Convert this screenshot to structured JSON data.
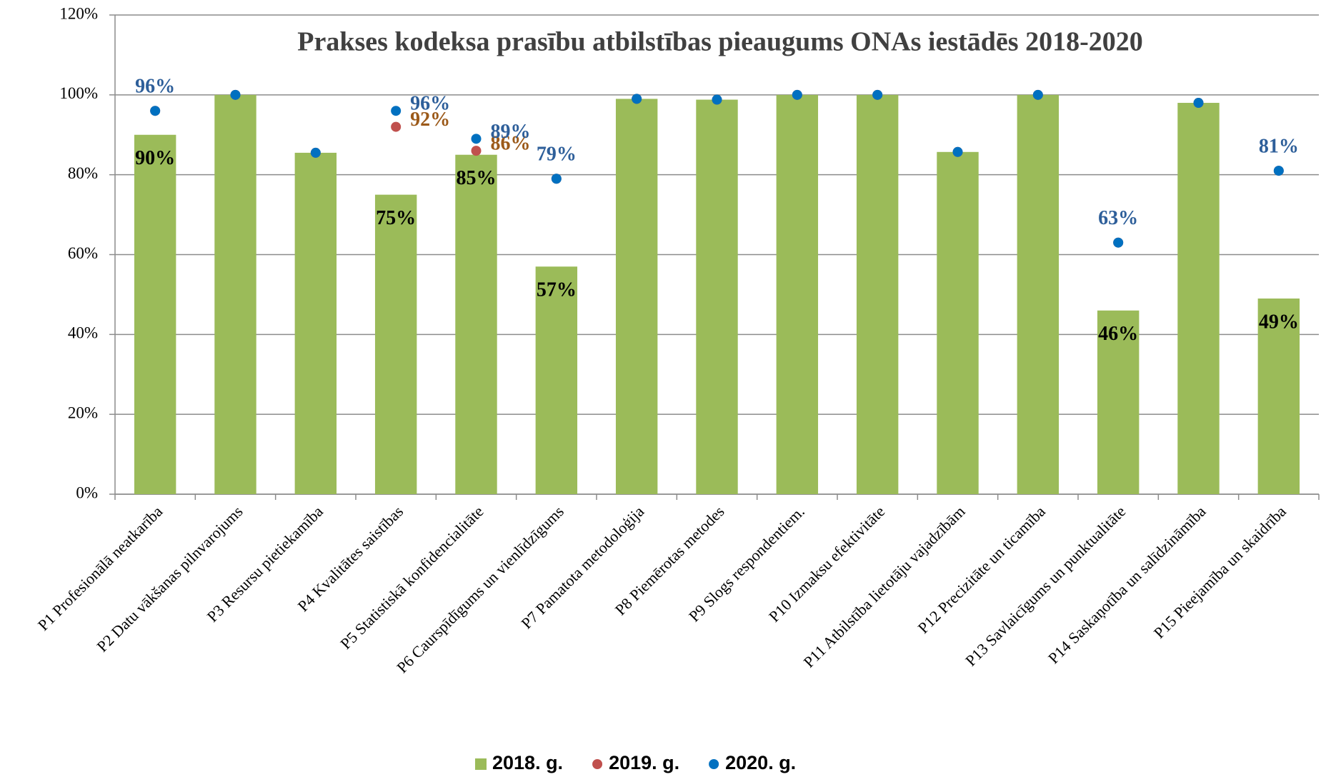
{
  "chart_data": {
    "type": "bar",
    "title": "Prakses kodeksa prasību atbilstības pieaugums ONAs iestādēs 2018-2020",
    "categories": [
      "P1 Profesionālā neatkarība",
      "P2 Datu vākšanas pilnvarojums",
      "P3 Resursu pietiekamība",
      "P4 Kvalitātes saistības",
      "P5 Statistiskā konfidencialitāte",
      "P6 Caurspīdīgums un vienlīdzīgums",
      "P7 Pamatota metodoloģija",
      "P8 Piemērotas metodes",
      "P9 Slogs respondentiem.",
      "P10 Izmaksu efektivitāte",
      "P11 Atbilstība lietotāju vajadzībām",
      "P12 Precizitāte un ticamība",
      "P13 Savlaicīgums un punktualitāte",
      "P14 Saskaņotība un salīdzināmība",
      "P15 Pieejamība un skaidrība"
    ],
    "series": [
      {
        "name": "2018. g.",
        "type": "bar",
        "color": "#9bbb59",
        "label_color": "#000000",
        "values": [
          90,
          100,
          85.5,
          75,
          85,
          57,
          99,
          98.8,
          100,
          100,
          85.7,
          100,
          46,
          98,
          49
        ],
        "value_labels": [
          "90%",
          null,
          null,
          "75%",
          "85%",
          "57%",
          null,
          null,
          null,
          null,
          null,
          null,
          "46%",
          null,
          "49%"
        ]
      },
      {
        "name": "2019. g.",
        "type": "scatter",
        "color": "#c0504d",
        "label_color": "#9c5a1a",
        "values": [
          96,
          100,
          85.5,
          92,
          86,
          79,
          99,
          98.8,
          100,
          100,
          85.7,
          100,
          63,
          98,
          81
        ],
        "value_labels": [
          null,
          null,
          null,
          "92%",
          "86%",
          null,
          null,
          null,
          null,
          null,
          null,
          null,
          null,
          null,
          null
        ]
      },
      {
        "name": "2020. g.",
        "type": "scatter",
        "color": "#0070c0",
        "label_color": "#2e5f9a",
        "values": [
          96,
          100,
          85.5,
          96,
          89,
          79,
          99,
          98.8,
          100,
          100,
          85.7,
          100,
          63,
          98,
          81
        ],
        "value_labels": [
          "96%",
          null,
          null,
          "96%",
          "89%",
          "79%",
          null,
          null,
          null,
          null,
          null,
          null,
          "63%",
          null,
          "81%"
        ]
      }
    ],
    "ylim": [
      0,
      120
    ],
    "yticks": [
      {
        "value": 0,
        "label": "0%"
      },
      {
        "value": 20,
        "label": "20%"
      },
      {
        "value": 40,
        "label": "40%"
      },
      {
        "value": 60,
        "label": "60%"
      },
      {
        "value": 80,
        "label": "80%"
      },
      {
        "value": 100,
        "label": "100%"
      },
      {
        "value": 120,
        "label": "120%"
      }
    ],
    "grid": true,
    "legend": "bottom"
  }
}
